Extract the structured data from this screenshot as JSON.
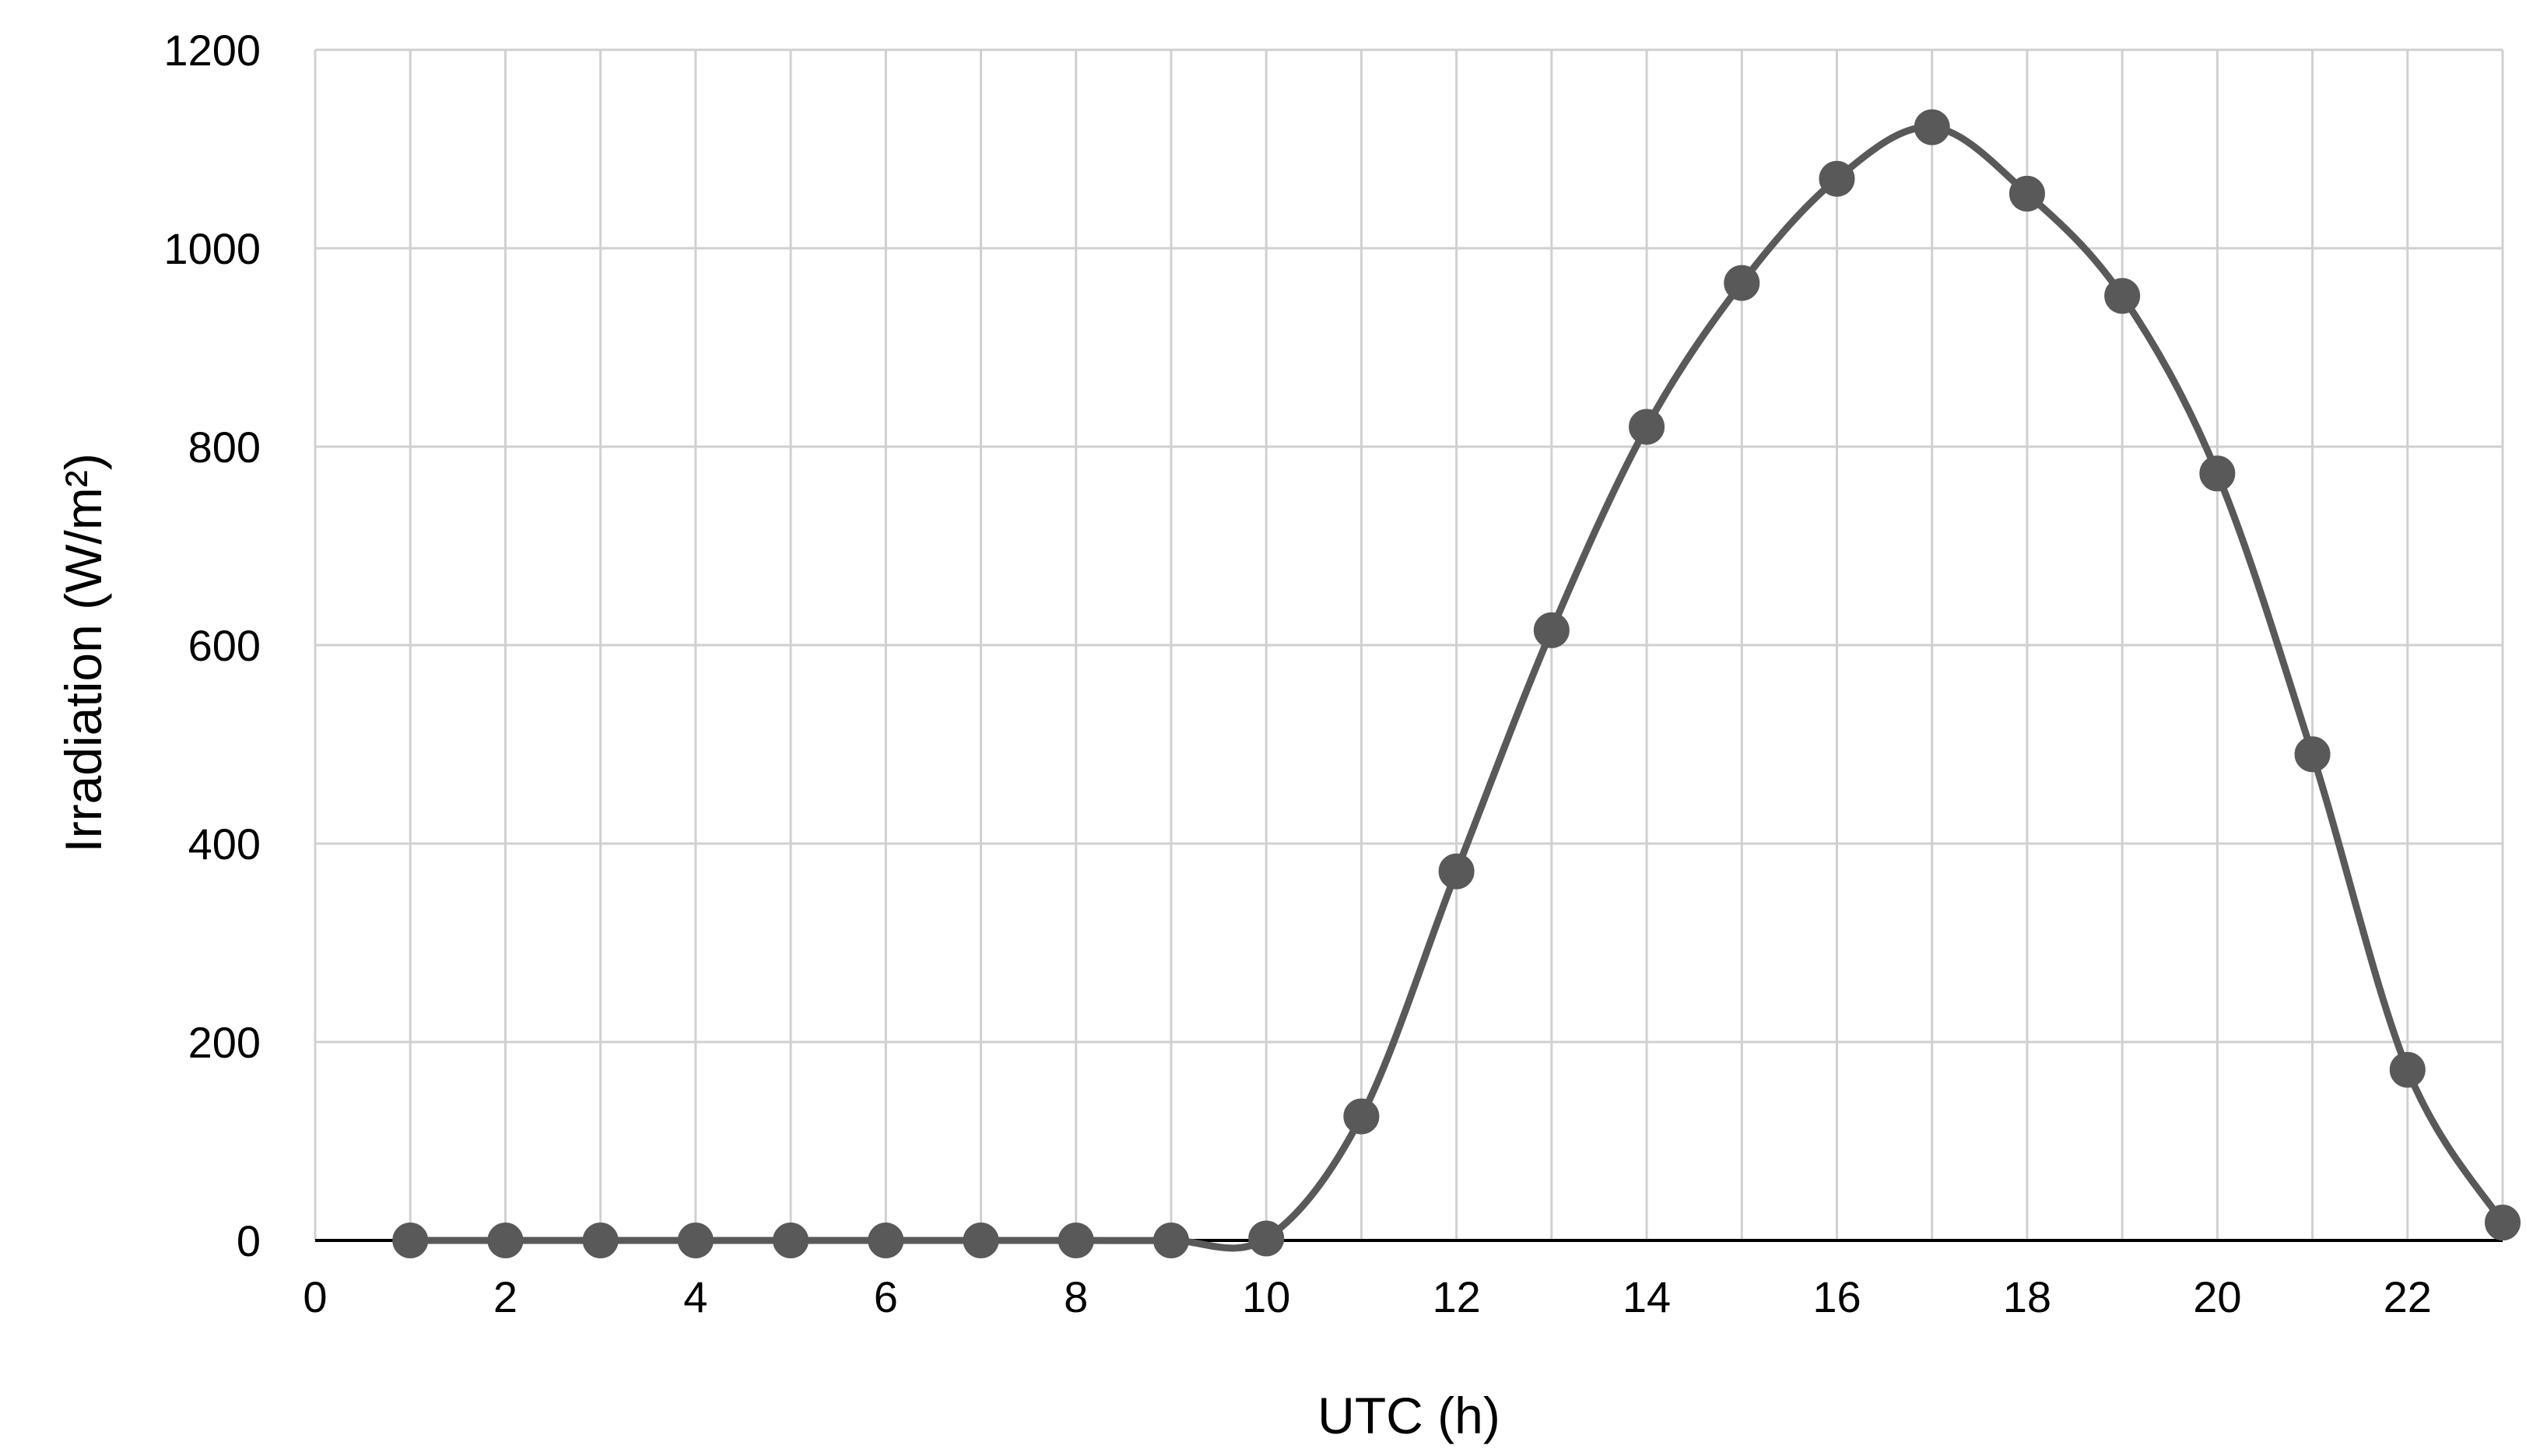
{
  "chart_data": {
    "type": "scatter",
    "title": "",
    "xlabel": "UTC (h)",
    "ylabel": "Irradiation (W/m²)",
    "xlim": [
      0,
      23
    ],
    "ylim": [
      0,
      1200
    ],
    "xticks": [
      0,
      2,
      4,
      6,
      8,
      10,
      12,
      14,
      16,
      18,
      20,
      22
    ],
    "yticks": [
      0,
      200,
      400,
      600,
      800,
      1000,
      1200
    ],
    "grid": true,
    "legend": "none",
    "line_style": "smoothed",
    "color": "#595959",
    "series": [
      {
        "x": [
          1,
          2,
          3,
          4,
          5,
          6,
          7,
          8,
          9,
          10,
          11,
          12,
          13,
          14,
          15,
          16,
          17,
          18,
          19,
          20,
          21,
          22,
          23
        ],
        "y": [
          0,
          0,
          0,
          0,
          0,
          0,
          0,
          0,
          0,
          2,
          125,
          372,
          615,
          820,
          965,
          1070,
          1122,
          1055,
          952,
          773,
          490,
          172,
          18
        ]
      }
    ]
  }
}
